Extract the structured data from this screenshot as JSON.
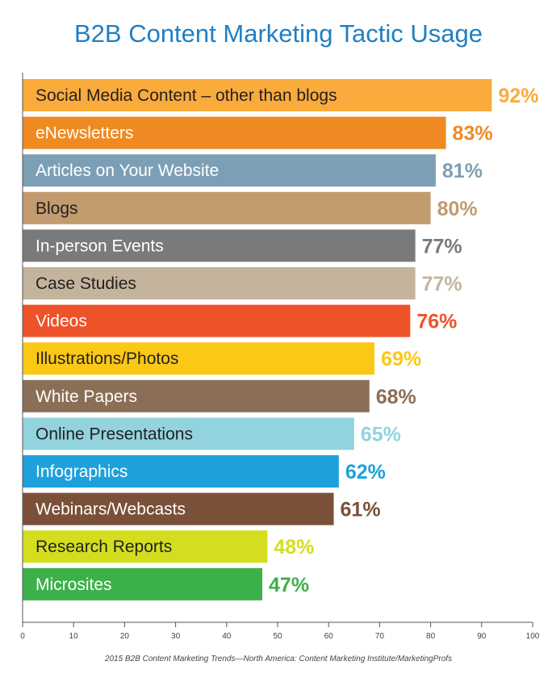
{
  "chart_data": {
    "type": "bar",
    "orientation": "horizontal",
    "title": "B2B Content Marketing Tactic Usage",
    "source": "2015 B2B Content Marketing Trends—North America: Content Marketing Institute/MarketingProfs",
    "xlim": [
      0,
      100
    ],
    "xticks": [
      0,
      10,
      20,
      30,
      40,
      50,
      60,
      70,
      80,
      90,
      100
    ],
    "grid": false,
    "legend": "none",
    "categories": [
      "Social Media Content – other than blogs",
      "eNewsletters",
      "Articles on Your Website",
      "Blogs",
      "In-person Events",
      "Case Studies",
      "Videos",
      "Illustrations/Photos",
      "White Papers",
      "Online Presentations",
      "Infographics",
      "Webinars/Webcasts",
      "Research Reports",
      "Microsites"
    ],
    "values": [
      92,
      83,
      81,
      80,
      77,
      77,
      76,
      69,
      68,
      65,
      62,
      61,
      48,
      47
    ],
    "value_labels": [
      "92%",
      "83%",
      "81%",
      "80%",
      "77%",
      "77%",
      "76%",
      "69%",
      "68%",
      "65%",
      "62%",
      "61%",
      "48%",
      "47%"
    ],
    "colors": [
      "#f9ab3c",
      "#ef8a22",
      "#7d9fb5",
      "#c29b6e",
      "#7a7a7c",
      "#c4b49d",
      "#ee5229",
      "#fbc816",
      "#8b6e56",
      "#92d3de",
      "#1da1dc",
      "#7a5038",
      "#d4de1e",
      "#3cb14a"
    ],
    "bar_text_colors": [
      "#231f20",
      "#ffffff",
      "#ffffff",
      "#231f20",
      "#ffffff",
      "#231f20",
      "#ffffff",
      "#231f20",
      "#ffffff",
      "#231f20",
      "#ffffff",
      "#ffffff",
      "#231f20",
      "#ffffff"
    ]
  }
}
